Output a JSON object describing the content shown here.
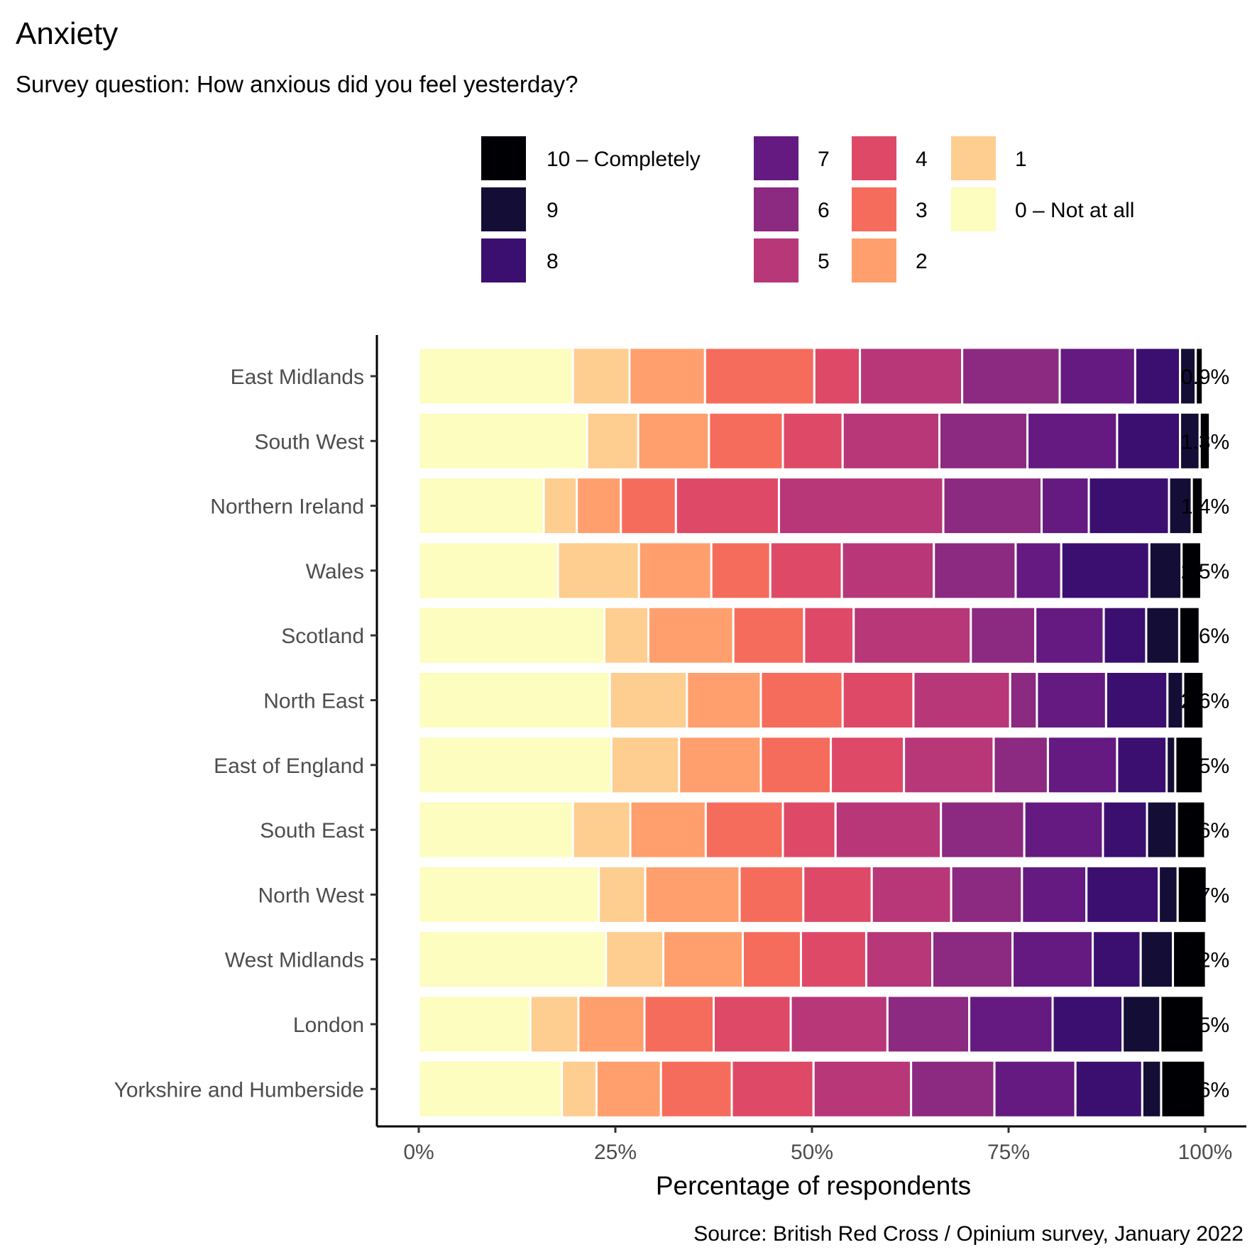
{
  "chart_data": {
    "type": "bar",
    "orientation": "horizontal",
    "stacked": true,
    "title": "Anxiety",
    "subtitle": "Survey question: How anxious did you feel yesterday?",
    "xlabel": "Percentage of respondents",
    "ylabel": "",
    "caption": "Source: British Red Cross / Opinium survey, January 2022",
    "xlim": [
      0,
      100
    ],
    "xticks": [
      "0%",
      "25%",
      "50%",
      "75%",
      "100%"
    ],
    "xtick_values": [
      0,
      25,
      50,
      75,
      100
    ],
    "legend_position": "top",
    "grid": false,
    "categories": [
      "East Midlands",
      "South West",
      "Northern Ireland",
      "Wales",
      "Scotland",
      "North East",
      "East of England",
      "South East",
      "North West",
      "West Midlands",
      "London",
      "Yorkshire and Humberside"
    ],
    "series": [
      {
        "name": "0 – Not at all",
        "color": "#FCFDBF",
        "values": [
          19.6,
          21.4,
          15.9,
          17.7,
          23.6,
          24.3,
          24.5,
          19.6,
          22.9,
          23.8,
          14.2,
          18.2
        ]
      },
      {
        "name": "1",
        "color": "#FECD90",
        "values": [
          7.2,
          6.5,
          4.2,
          10.3,
          5.6,
          9.8,
          8.6,
          7.3,
          5.9,
          7.3,
          6.1,
          4.4
        ]
      },
      {
        "name": "2",
        "color": "#FE9F6D",
        "values": [
          9.6,
          9.0,
          5.6,
          9.2,
          10.8,
          9.4,
          10.4,
          9.6,
          12.0,
          10.1,
          8.4,
          8.2
        ]
      },
      {
        "name": "3",
        "color": "#F66C5C",
        "values": [
          13.9,
          9.4,
          7.0,
          7.5,
          9.0,
          10.4,
          8.9,
          9.8,
          8.1,
          7.4,
          8.8,
          9.0
        ]
      },
      {
        "name": "4",
        "color": "#DE4968",
        "values": [
          5.8,
          7.6,
          13.1,
          9.1,
          6.3,
          9.0,
          9.3,
          6.7,
          8.7,
          8.3,
          9.8,
          10.4
        ]
      },
      {
        "name": "5",
        "color": "#B73779",
        "values": [
          13.0,
          12.3,
          20.9,
          11.7,
          14.9,
          12.3,
          11.4,
          13.4,
          10.1,
          8.4,
          12.3,
          12.4
        ]
      },
      {
        "name": "6",
        "color": "#8C2981",
        "values": [
          12.4,
          11.2,
          12.5,
          10.4,
          8.2,
          3.4,
          6.9,
          10.6,
          9.0,
          10.2,
          10.4,
          10.6
        ]
      },
      {
        "name": "7",
        "color": "#641A80",
        "values": [
          9.6,
          11.4,
          6.0,
          5.8,
          8.7,
          8.8,
          8.8,
          10.0,
          8.2,
          10.2,
          10.6,
          10.3
        ]
      },
      {
        "name": "8",
        "color": "#3B0F70",
        "values": [
          5.7,
          8.0,
          10.2,
          11.2,
          5.4,
          7.8,
          6.3,
          5.6,
          9.2,
          6.1,
          8.9,
          8.5
        ]
      },
      {
        "name": "9",
        "color": "#140E36",
        "values": [
          2.0,
          2.5,
          2.9,
          4.1,
          4.2,
          2.0,
          1.1,
          3.8,
          2.4,
          4.1,
          4.8,
          2.4
        ]
      },
      {
        "name": "10 – Completely",
        "color": "#000004",
        "values": [
          0.9,
          1.3,
          1.4,
          2.5,
          2.6,
          2.6,
          3.5,
          3.6,
          3.7,
          4.2,
          5.5,
          5.6
        ]
      }
    ],
    "data_labels": [
      "0.9%",
      "1.3%",
      "1.4%",
      "2.5%",
      "2.6%",
      "2.6%",
      "3.5%",
      "3.6%",
      "3.7%",
      "4.2%",
      "5.5%",
      "5.6%"
    ]
  }
}
